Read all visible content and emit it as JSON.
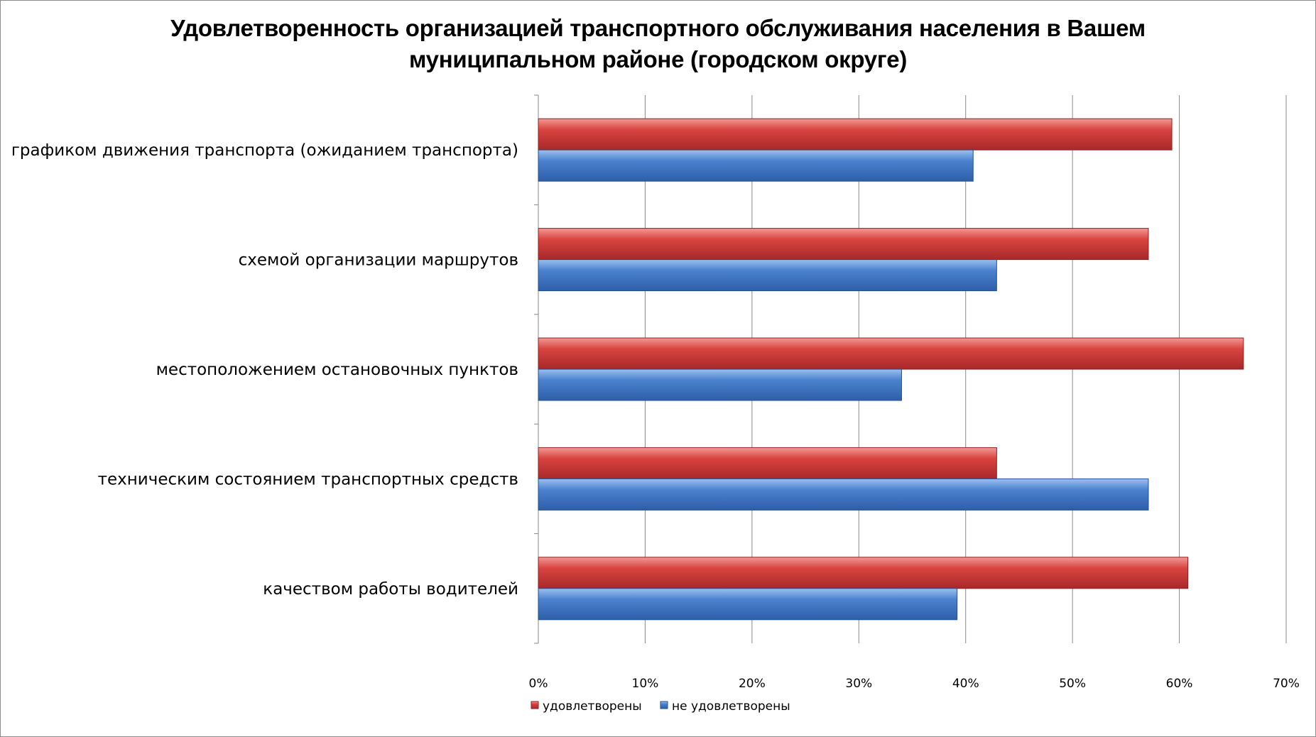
{
  "chart_data": {
    "type": "bar",
    "orientation": "horizontal",
    "title_lines": [
      "Удовлетворенность организацией транспортного обслуживания населения в Вашем",
      "муниципальном районе (городском округе)"
    ],
    "categories": [
      "графиком движения транспорта (ожиданием транспорта)",
      "схемой организации маршрутов",
      "местоположением остановочных пунктов",
      "техническим состоянием транспортных средств",
      "качеством работы водителей"
    ],
    "series": [
      {
        "name": "удовлетворены",
        "color": "#c0393b",
        "values": [
          59.3,
          57.1,
          66.0,
          42.9,
          60.8
        ]
      },
      {
        "name": "не удовлетворены",
        "color": "#3f74c0",
        "values": [
          40.7,
          42.9,
          34.0,
          57.1,
          39.2
        ]
      }
    ],
    "xlim": [
      0,
      70
    ],
    "x_ticks": [
      "0%",
      "10%",
      "20%",
      "30%",
      "40%",
      "50%",
      "60%",
      "70%"
    ],
    "grid": true,
    "legend_position": "bottom-left"
  }
}
